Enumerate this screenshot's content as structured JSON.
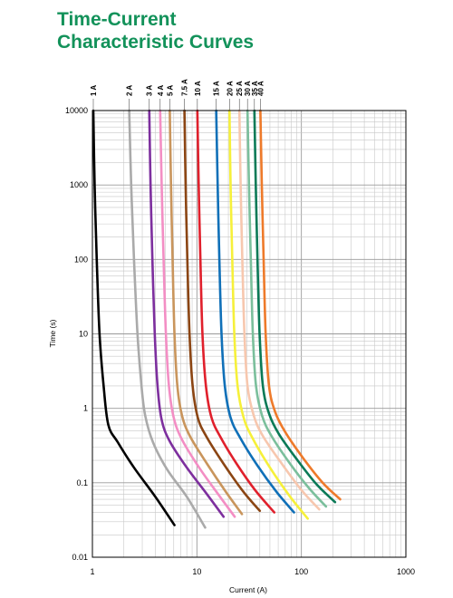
{
  "header": {
    "title_line1": "Time-Current",
    "title_line2": "Characteristic Curves"
  },
  "colors": {
    "title": "#13925a",
    "grid": "#c8c8c8",
    "axis": "#000000"
  },
  "chart_data": {
    "type": "line",
    "title": "",
    "xlabel": "Current (A)",
    "ylabel": "Time (s)",
    "x_scale": "log",
    "y_scale": "log",
    "xlim": [
      1,
      1000
    ],
    "ylim": [
      0.01,
      10000
    ],
    "grid": true,
    "legend": "curve labels along top",
    "x_ticks": [
      "1",
      "10",
      "100",
      "1000"
    ],
    "y_ticks": [
      "0.01",
      "0.1",
      "1",
      "10",
      "100",
      "1000",
      "10000"
    ],
    "series": [
      {
        "name": "1 A",
        "color": "#000000",
        "points": [
          [
            1.02,
            10000
          ],
          [
            1.05,
            1000
          ],
          [
            1.1,
            100
          ],
          [
            1.17,
            10
          ],
          [
            1.28,
            2
          ],
          [
            1.42,
            0.6
          ],
          [
            1.75,
            0.35
          ],
          [
            2.5,
            0.16
          ],
          [
            4,
            0.065
          ],
          [
            6.1,
            0.027
          ]
        ]
      },
      {
        "name": "2 A",
        "color": "#aaaaaa",
        "points": [
          [
            2.25,
            10000
          ],
          [
            2.35,
            1000
          ],
          [
            2.5,
            100
          ],
          [
            2.7,
            10
          ],
          [
            2.95,
            2
          ],
          [
            3.2,
            0.8
          ],
          [
            3.8,
            0.35
          ],
          [
            5.2,
            0.15
          ],
          [
            8,
            0.065
          ],
          [
            12,
            0.025
          ]
        ]
      },
      {
        "name": "3 A",
        "color": "#7d2f9e",
        "points": [
          [
            3.5,
            10000
          ],
          [
            3.6,
            1000
          ],
          [
            3.75,
            100
          ],
          [
            3.95,
            10
          ],
          [
            4.2,
            2
          ],
          [
            4.6,
            0.7
          ],
          [
            5.5,
            0.36
          ],
          [
            8,
            0.16
          ],
          [
            12.5,
            0.07
          ],
          [
            18,
            0.035
          ]
        ]
      },
      {
        "name": "4 A",
        "color": "#f38ec4",
        "points": [
          [
            4.45,
            10000
          ],
          [
            4.6,
            1000
          ],
          [
            4.8,
            100
          ],
          [
            5.05,
            10
          ],
          [
            5.4,
            2
          ],
          [
            6,
            0.75
          ],
          [
            7.2,
            0.38
          ],
          [
            10.5,
            0.16
          ],
          [
            16,
            0.07
          ],
          [
            23,
            0.035
          ]
        ]
      },
      {
        "name": "5 A",
        "color": "#c9955c",
        "points": [
          [
            5.5,
            10000
          ],
          [
            5.65,
            1000
          ],
          [
            5.85,
            100
          ],
          [
            6.1,
            10
          ],
          [
            6.5,
            2
          ],
          [
            7.2,
            0.8
          ],
          [
            8.6,
            0.42
          ],
          [
            12.5,
            0.18
          ],
          [
            19,
            0.075
          ],
          [
            27,
            0.038
          ]
        ]
      },
      {
        "name": "7.5 A",
        "color": "#8b4513",
        "points": [
          [
            7.6,
            10000
          ],
          [
            7.8,
            1000
          ],
          [
            8.1,
            100
          ],
          [
            8.5,
            10
          ],
          [
            9.1,
            2
          ],
          [
            10.2,
            0.75
          ],
          [
            12.3,
            0.42
          ],
          [
            18,
            0.18
          ],
          [
            28,
            0.075
          ],
          [
            40,
            0.042
          ]
        ]
      },
      {
        "name": "10 A",
        "color": "#e0202c",
        "points": [
          [
            10.1,
            10000
          ],
          [
            10.4,
            1000
          ],
          [
            10.8,
            100
          ],
          [
            11.3,
            10
          ],
          [
            12.2,
            2
          ],
          [
            13.8,
            0.75
          ],
          [
            17,
            0.4
          ],
          [
            24,
            0.18
          ],
          [
            36,
            0.08
          ],
          [
            55,
            0.04
          ]
        ]
      },
      {
        "name": "15 A",
        "color": "#1070b8",
        "points": [
          [
            15.3,
            10000
          ],
          [
            15.8,
            1000
          ],
          [
            16.4,
            100
          ],
          [
            17.2,
            10
          ],
          [
            18.5,
            2
          ],
          [
            21,
            0.75
          ],
          [
            26,
            0.4
          ],
          [
            38,
            0.17
          ],
          [
            58,
            0.075
          ],
          [
            85,
            0.04
          ]
        ]
      },
      {
        "name": "20 A",
        "color": "#f6f03a",
        "points": [
          [
            20.5,
            10000
          ],
          [
            21,
            1000
          ],
          [
            21.8,
            100
          ],
          [
            22.8,
            10
          ],
          [
            24.5,
            2
          ],
          [
            28,
            0.75
          ],
          [
            34,
            0.4
          ],
          [
            50,
            0.16
          ],
          [
            78,
            0.065
          ],
          [
            115,
            0.033
          ]
        ]
      },
      {
        "name": "25 A",
        "color": "#f7c7ae",
        "points": [
          [
            25.5,
            10000
          ],
          [
            26.2,
            1000
          ],
          [
            27.2,
            100
          ],
          [
            28.5,
            10
          ],
          [
            30.5,
            2
          ],
          [
            35,
            0.8
          ],
          [
            43,
            0.42
          ],
          [
            65,
            0.18
          ],
          [
            100,
            0.08
          ],
          [
            148,
            0.044
          ]
        ]
      },
      {
        "name": "30 A",
        "color": "#7bbf9c",
        "points": [
          [
            30.5,
            10000
          ],
          [
            31.5,
            1000
          ],
          [
            32.8,
            100
          ],
          [
            34.3,
            10
          ],
          [
            36.8,
            2
          ],
          [
            42,
            0.8
          ],
          [
            52,
            0.42
          ],
          [
            78,
            0.18
          ],
          [
            118,
            0.085
          ],
          [
            172,
            0.048
          ]
        ]
      },
      {
        "name": "35 A",
        "color": "#0b7a57",
        "points": [
          [
            35.5,
            10000
          ],
          [
            36.6,
            1000
          ],
          [
            38,
            100
          ],
          [
            39.8,
            10
          ],
          [
            42.8,
            2
          ],
          [
            49,
            0.85
          ],
          [
            61,
            0.45
          ],
          [
            92,
            0.2
          ],
          [
            140,
            0.095
          ],
          [
            210,
            0.055
          ]
        ]
      },
      {
        "name": "40 A",
        "color": "#ee7a2a",
        "points": [
          [
            40.5,
            10000
          ],
          [
            41.8,
            1000
          ],
          [
            43.5,
            100
          ],
          [
            45.5,
            10
          ],
          [
            49,
            2
          ],
          [
            56,
            0.9
          ],
          [
            70,
            0.48
          ],
          [
            105,
            0.21
          ],
          [
            160,
            0.1
          ],
          [
            235,
            0.06
          ]
        ]
      }
    ]
  }
}
